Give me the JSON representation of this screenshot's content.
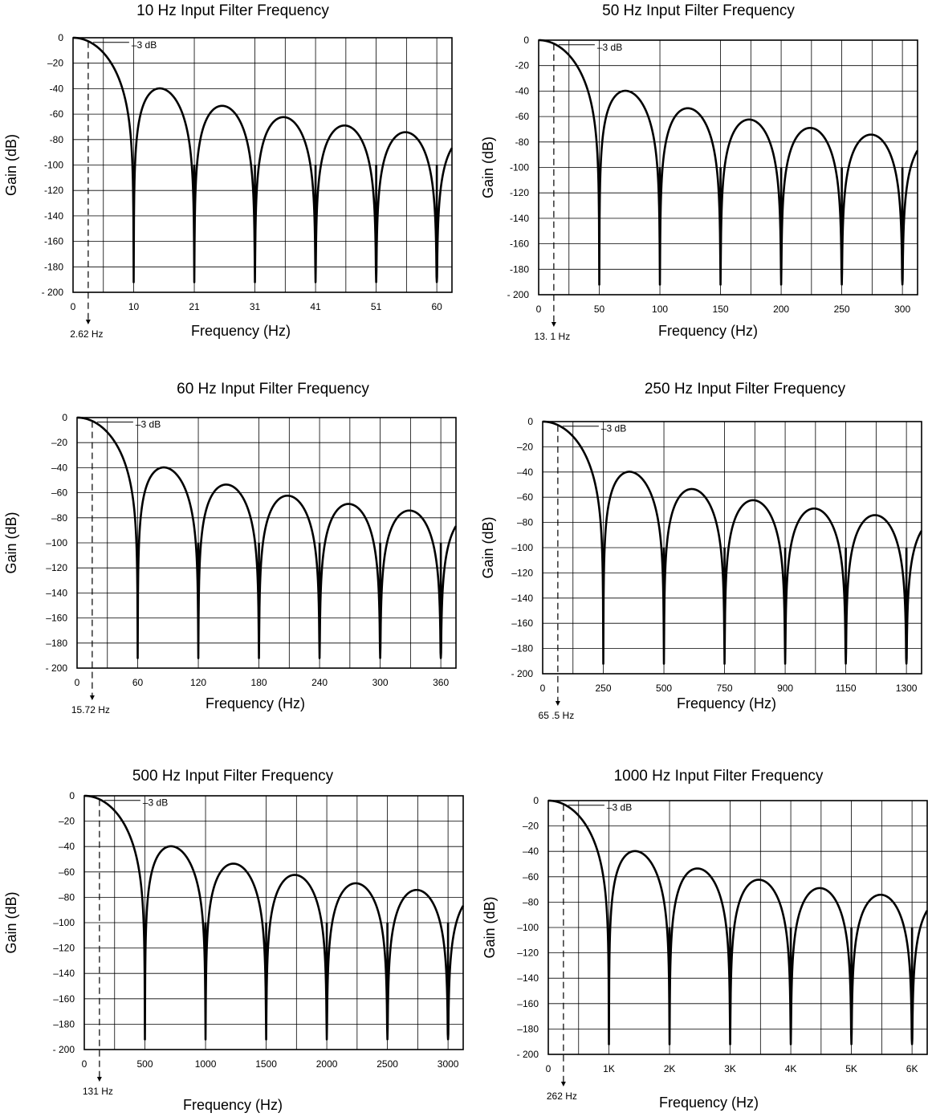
{
  "chart_data": [
    {
      "type": "line",
      "title": "10 Hz Input Filter Frequency",
      "xlabel": "Frequency (Hz)",
      "ylabel": "Gain (dB)",
      "x_ticks": [
        "0",
        "10",
        "21",
        "31",
        "41",
        "51",
        "60"
      ],
      "y_ticks": [
        "0",
        "–20",
        "-40",
        "-60",
        "-80",
        "-100",
        "-120",
        "-140",
        "-160",
        "-180",
        "- 200"
      ],
      "xlim": [
        0,
        65.5
      ],
      "ylim": [
        -200,
        0
      ],
      "notch_frequency": 10.48,
      "cutoff_label": "2.62 Hz",
      "cutoff_value": 2.62,
      "db_label": "–3 dB",
      "series": [
        {
          "x": [
            0,
            2.62,
            5.24,
            7.86,
            10.48,
            15.72,
            20.96,
            26.2,
            31.44,
            36.68,
            41.92,
            47.16,
            52.4,
            57.64,
            62.88,
            65.5
          ],
          "y": [
            0,
            -3,
            -12,
            -33,
            -200,
            -42,
            -200,
            -56,
            -200,
            -63,
            -200,
            -70,
            -200,
            -75,
            -200,
            -79
          ]
        }
      ]
    },
    {
      "type": "line",
      "title": "50 Hz Input Filter Frequency",
      "xlabel": "Frequency (Hz)",
      "ylabel": "Gain (dB)",
      "x_ticks": [
        "0",
        "50",
        "100",
        "150",
        "200",
        "250",
        "300"
      ],
      "y_ticks": [
        "0",
        "-20",
        "-40",
        "-60",
        "-80",
        "-100",
        "-120",
        "-140",
        "-160",
        "-180",
        "- 200"
      ],
      "xlim": [
        0,
        327.5
      ],
      "ylim": [
        -200,
        0
      ],
      "notch_frequency": 52.4,
      "cutoff_label": "13. 1 Hz",
      "cutoff_value": 13.1,
      "db_label": "–3 dB",
      "series": [
        {
          "x": [
            0,
            13.1,
            26.2,
            39.3,
            52.4,
            78.6,
            104.8,
            131,
            157.2,
            183.4,
            209.6,
            235.8,
            262,
            288.2,
            314.4,
            327.5
          ],
          "y": [
            0,
            -3,
            -12,
            -33,
            -200,
            -42,
            -200,
            -56,
            -200,
            -63,
            -200,
            -70,
            -200,
            -75,
            -200,
            -79
          ]
        }
      ]
    },
    {
      "type": "line",
      "title": "60 Hz Input Filter Frequency",
      "xlabel": "Frequency (Hz)",
      "ylabel": "Gain (dB)",
      "x_ticks": [
        "0",
        "60",
        "120",
        "180",
        "240",
        "300",
        "360"
      ],
      "y_ticks": [
        "0",
        "–20",
        "–40",
        "–60",
        "–80",
        "–100",
        "–120",
        "–140",
        "–160",
        "–180",
        "- 200"
      ],
      "xlim": [
        0,
        393
      ],
      "ylim": [
        -200,
        0
      ],
      "notch_frequency": 62.88,
      "cutoff_label": "15.72 Hz",
      "cutoff_value": 15.72,
      "db_label": "–3 dB",
      "series": [
        {
          "x": [
            0,
            15.72,
            31.44,
            47.16,
            62.88,
            94.32,
            125.76,
            157.2,
            188.64,
            220.08,
            251.52,
            282.96,
            314.4,
            345.84,
            377.28,
            393
          ],
          "y": [
            0,
            -3,
            -12,
            -33,
            -200,
            -42,
            -200,
            -56,
            -200,
            -63,
            -200,
            -70,
            -200,
            -75,
            -200,
            -79
          ]
        }
      ]
    },
    {
      "type": "line",
      "title": "250 Hz Input Filter Frequency",
      "xlabel": "Frequency (Hz)",
      "ylabel": "Gain (dB)",
      "x_ticks": [
        "0",
        "250",
        "500",
        "750",
        "900",
        "1150",
        "1300"
      ],
      "y_ticks": [
        "0",
        "–20",
        "–40",
        "–60",
        "–80",
        "–100",
        "–120",
        "–140",
        "–160",
        "–180",
        "- 200"
      ],
      "xlim": [
        0,
        1637.5
      ],
      "ylim": [
        -200,
        0
      ],
      "notch_frequency": 262,
      "cutoff_label": "65 .5 Hz",
      "cutoff_value": 65.5,
      "db_label": "–3 dB",
      "series": [
        {
          "x": [
            0,
            65.5,
            131,
            196.5,
            262,
            393,
            524,
            655,
            786,
            917,
            1048,
            1179,
            1310,
            1441,
            1572,
            1637.5
          ],
          "y": [
            0,
            -3,
            -12,
            -33,
            -200,
            -42,
            -200,
            -56,
            -200,
            -63,
            -200,
            -70,
            -200,
            -75,
            -200,
            -79
          ]
        }
      ]
    },
    {
      "type": "line",
      "title": "500 Hz Input Filter Frequency",
      "xlabel": "Frequency (Hz)",
      "ylabel": "Gain (dB)",
      "x_ticks": [
        "0",
        "500",
        "1000",
        "1500",
        "2000",
        "2500",
        "3000"
      ],
      "y_ticks": [
        "0",
        "–20",
        "–40",
        "–60",
        "–80",
        "–100",
        "–120",
        "–140",
        "–160",
        "–180",
        "- 200"
      ],
      "xlim": [
        0,
        3275
      ],
      "ylim": [
        -200,
        0
      ],
      "notch_frequency": 524,
      "cutoff_label": "131 Hz",
      "cutoff_value": 131,
      "db_label": "–3 dB",
      "series": [
        {
          "x": [
            0,
            131,
            262,
            393,
            524,
            786,
            1048,
            1310,
            1572,
            1834,
            2096,
            2358,
            2620,
            2882,
            3144,
            3275
          ],
          "y": [
            0,
            -3,
            -12,
            -33,
            -200,
            -42,
            -200,
            -56,
            -200,
            -63,
            -200,
            -70,
            -200,
            -75,
            -200,
            -79
          ]
        }
      ]
    },
    {
      "type": "line",
      "title": "1000 Hz Input Filter Frequency",
      "xlabel": "Frequency (Hz)",
      "ylabel": "Gain (dB)",
      "x_ticks": [
        "0",
        "1K",
        "2K",
        "3K",
        "4K",
        "5K",
        "6K"
      ],
      "y_ticks": [
        "0",
        "–20",
        "–40",
        "–60",
        "–80",
        "–100",
        "–120",
        "–140",
        "–160",
        "–180",
        "- 200"
      ],
      "xlim": [
        0,
        6550
      ],
      "ylim": [
        -200,
        0
      ],
      "notch_frequency": 1048,
      "cutoff_label": "262 Hz",
      "cutoff_value": 262,
      "db_label": "–3 dB",
      "series": [
        {
          "x": [
            0,
            262,
            524,
            786,
            1048,
            1572,
            2096,
            2620,
            3144,
            3668,
            4192,
            4716,
            5240,
            5764,
            6288,
            6550
          ],
          "y": [
            0,
            -3,
            -12,
            -33,
            -200,
            -42,
            -200,
            -56,
            -200,
            -63,
            -200,
            -70,
            -200,
            -75,
            -200,
            -79
          ]
        }
      ]
    }
  ]
}
